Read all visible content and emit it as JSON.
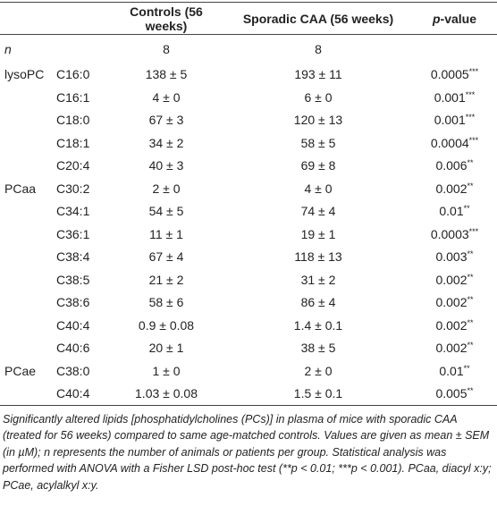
{
  "table": {
    "header": {
      "controls": "Controls (56 weeks)",
      "caa": "Sporadic CAA (56 weeks)",
      "p_italic": "p",
      "p_rest": "-value"
    },
    "n_row": {
      "label": "n",
      "controls": "8",
      "caa": "8"
    },
    "rows": [
      {
        "group": "lysoPC",
        "lipid": "C16:0",
        "controls": "138 ± 5",
        "caa": "193 ± 11",
        "p": "0.0005",
        "sig": "***"
      },
      {
        "lipid": "C16:1",
        "controls": "4 ± 0",
        "caa": "6 ± 0",
        "p": "0.001",
        "sig": "***"
      },
      {
        "lipid": "C18:0",
        "controls": "67 ± 3",
        "caa": "120 ± 13",
        "p": "0.001",
        "sig": "***"
      },
      {
        "lipid": "C18:1",
        "controls": "34 ± 2",
        "caa": "58 ± 5",
        "p": "0.0004",
        "sig": "***"
      },
      {
        "lipid": "C20:4",
        "controls": "40 ± 3",
        "caa": "69 ± 8",
        "p": "0.006",
        "sig": "**"
      },
      {
        "group": "PCaa",
        "lipid": "C30:2",
        "controls": "2 ± 0",
        "caa": "4 ± 0",
        "p": "0.002",
        "sig": "**"
      },
      {
        "lipid": "C34:1",
        "controls": "54 ± 5",
        "caa": "74 ± 4",
        "p": "0.01",
        "sig": "**"
      },
      {
        "lipid": "C36:1",
        "controls": "11 ± 1",
        "caa": "19 ± 1",
        "p": "0.0003",
        "sig": "***"
      },
      {
        "lipid": "C38:4",
        "controls": "67 ± 4",
        "caa": "118 ± 13",
        "p": "0.003",
        "sig": "**"
      },
      {
        "lipid": "C38:5",
        "controls": "21 ± 2",
        "caa": "31 ± 2",
        "p": "0.002",
        "sig": "**"
      },
      {
        "lipid": "C38:6",
        "controls": "58 ± 6",
        "caa": "86 ± 4",
        "p": "0.002",
        "sig": "**"
      },
      {
        "lipid": "C40:4",
        "controls": "0.9 ± 0.08",
        "caa": "1.4 ± 0.1",
        "p": "0.002",
        "sig": "**"
      },
      {
        "lipid": "C40:6",
        "controls": "20 ± 1",
        "caa": "38 ± 5",
        "p": "0.002",
        "sig": "**"
      },
      {
        "group": "PCae",
        "lipid": "C38:0",
        "controls": "1 ± 0",
        "caa": "2 ± 0",
        "p": "0.01",
        "sig": "**"
      },
      {
        "lipid": "C40:4",
        "controls": "1.03 ± 0.08",
        "caa": "1.5 ± 0.1",
        "p": "0.005",
        "sig": "**"
      }
    ],
    "caption": "Significantly altered lipids [phosphatidylcholines (PCs)] in plasma of mice with sporadic CAA (treated for 56 weeks) compared to same age-matched controls. Values are given as mean ± SEM (in µM); n represents the number of animals or patients per group. Statistical analysis was performed with ANOVA with a Fisher LSD post-hoc test (**p < 0.01; ***p < 0.001). PCaa, diacyl x:y; PCae, acylalkyl x:y."
  }
}
